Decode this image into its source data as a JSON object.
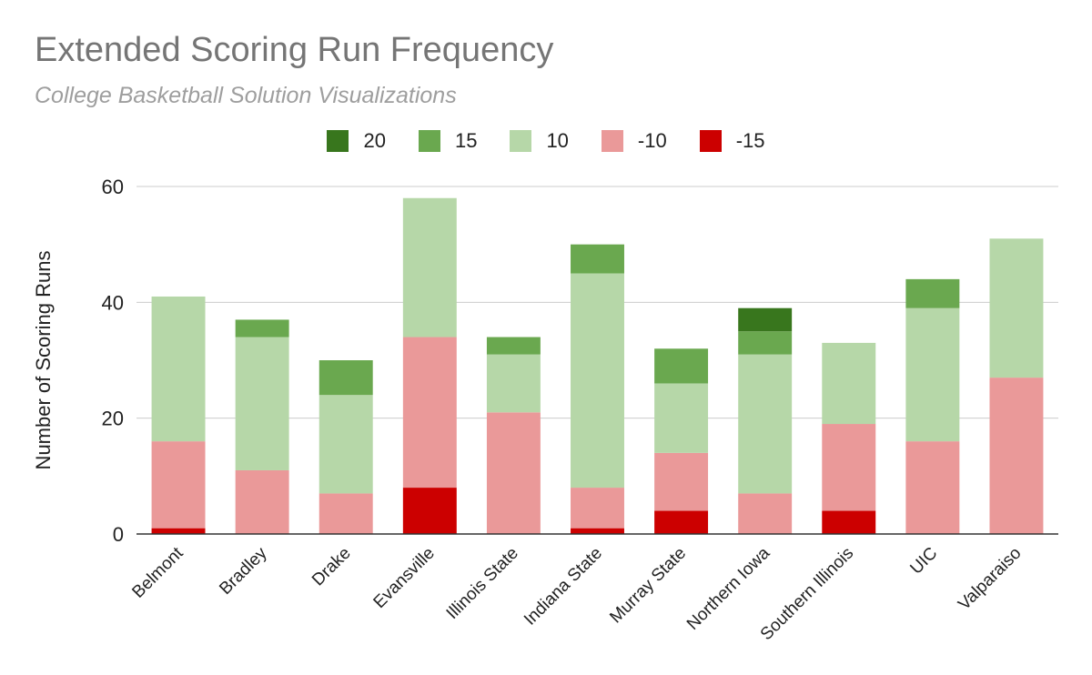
{
  "chart_data": {
    "type": "bar",
    "stacked": true,
    "title": "Extended Scoring Run Frequency",
    "subtitle": "College Basketball Solution Visualizations",
    "xlabel": "",
    "ylabel": "Number of Scoring Runs",
    "ylim": [
      0,
      60
    ],
    "yticks": [
      0,
      20,
      40,
      60
    ],
    "grid": true,
    "legend_position": "top",
    "categories": [
      "Belmont",
      "Bradley",
      "Drake",
      "Evansville",
      "Illinois State",
      "Indiana State",
      "Murray State",
      "Northern Iowa",
      "Southern Illinois",
      "UIC",
      "Valparaiso"
    ],
    "series": [
      {
        "name": "20",
        "color": "#38761d",
        "values": [
          0,
          0,
          0,
          0,
          0,
          0,
          0,
          4,
          0,
          0,
          0
        ]
      },
      {
        "name": "15",
        "color": "#6aa84f",
        "values": [
          0,
          3,
          6,
          0,
          3,
          5,
          6,
          4,
          0,
          5,
          0
        ]
      },
      {
        "name": "10",
        "color": "#b6d7a8",
        "values": [
          25,
          23,
          17,
          24,
          10,
          37,
          12,
          24,
          14,
          23,
          24
        ]
      },
      {
        "name": "-10",
        "color": "#ea9999",
        "values": [
          15,
          11,
          7,
          26,
          21,
          7,
          10,
          7,
          15,
          16,
          27
        ]
      },
      {
        "name": "-15",
        "color": "#cc0000",
        "values": [
          1,
          0,
          0,
          8,
          0,
          1,
          4,
          0,
          4,
          0,
          0
        ]
      }
    ],
    "stack_order": [
      "-15",
      "-10",
      "10",
      "15",
      "20"
    ]
  }
}
